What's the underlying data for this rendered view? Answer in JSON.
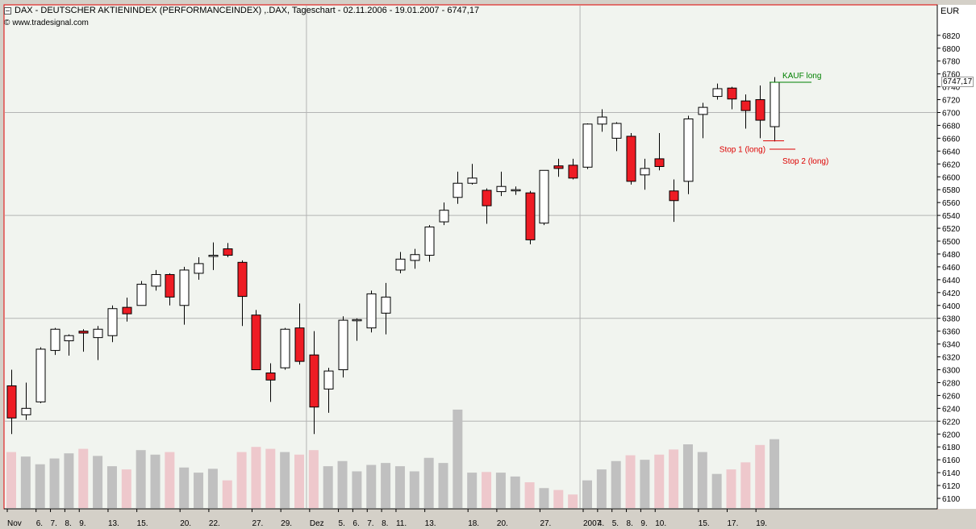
{
  "header": {
    "title": "DAX  - DEUTSCHER AKTIENINDEX (PERFORMANCEINDEX) ,.DAX, Tageschart - 02.11.2006 - 19.01.2007 - 6747,17",
    "source": "www.tradesignal.com",
    "currency": "EUR"
  },
  "last_price_label": "6747,17",
  "icons": {
    "title": "window-icon",
    "source": "copyright-icon"
  },
  "colors": {
    "up_candle": "#ffffff",
    "down_candle": "#ee1c24",
    "volume_up": "#c0c0c0",
    "volume_down": "#eec8cc",
    "signal_buy": "#008000",
    "signal_stop": "#dd0000"
  },
  "chart_data": {
    "type": "candlestick",
    "ylim": [
      6090,
      6840
    ],
    "yticks": [
      6100,
      6120,
      6140,
      6160,
      6180,
      6200,
      6220,
      6240,
      6260,
      6280,
      6300,
      6320,
      6340,
      6360,
      6380,
      6400,
      6420,
      6440,
      6460,
      6480,
      6500,
      6520,
      6540,
      6560,
      6580,
      6600,
      6620,
      6640,
      6660,
      6680,
      6700,
      6720,
      6740,
      6760,
      6780,
      6800,
      6820
    ],
    "x_labels": [
      {
        "i": 0,
        "label": "Nov"
      },
      {
        "i": 2,
        "label": "6."
      },
      {
        "i": 3,
        "label": "7."
      },
      {
        "i": 4,
        "label": "8."
      },
      {
        "i": 5,
        "label": "9."
      },
      {
        "i": 7,
        "label": "13."
      },
      {
        "i": 9,
        "label": "15."
      },
      {
        "i": 12,
        "label": "20."
      },
      {
        "i": 14,
        "label": "22."
      },
      {
        "i": 17,
        "label": "27."
      },
      {
        "i": 19,
        "label": "29."
      },
      {
        "i": 21,
        "label": "Dez"
      },
      {
        "i": 23,
        "label": "5."
      },
      {
        "i": 24,
        "label": "6."
      },
      {
        "i": 25,
        "label": "7."
      },
      {
        "i": 26,
        "label": "8."
      },
      {
        "i": 27,
        "label": "11."
      },
      {
        "i": 29,
        "label": "13."
      },
      {
        "i": 32,
        "label": "18."
      },
      {
        "i": 34,
        "label": "20."
      },
      {
        "i": 37,
        "label": "27."
      },
      {
        "i": 40,
        "label": "2007"
      },
      {
        "i": 41,
        "label": "4."
      },
      {
        "i": 42,
        "label": "5."
      },
      {
        "i": 43,
        "label": "8."
      },
      {
        "i": 44,
        "label": "9."
      },
      {
        "i": 45,
        "label": "10."
      },
      {
        "i": 48,
        "label": "15."
      },
      {
        "i": 50,
        "label": "17."
      },
      {
        "i": 52,
        "label": "19."
      }
    ],
    "vgrid_candles": [
      21,
      40
    ],
    "hgrid_values": [
      6220,
      6380,
      6540,
      6700
    ],
    "candles": [
      {
        "o": 6275,
        "h": 6300,
        "l": 6200,
        "c": 6225,
        "v": 6172
      },
      {
        "o": 6230,
        "h": 6280,
        "l": 6222,
        "c": 6240,
        "v": 6165
      },
      {
        "o": 6250,
        "h": 6335,
        "l": 6248,
        "c": 6332,
        "v": 6153
      },
      {
        "o": 6330,
        "h": 6365,
        "l": 6323,
        "c": 6363,
        "v": 6162
      },
      {
        "o": 6345,
        "h": 6355,
        "l": 6322,
        "c": 6353,
        "v": 6170
      },
      {
        "o": 6360,
        "h": 6363,
        "l": 6328,
        "c": 6357,
        "v": 6177
      },
      {
        "o": 6350,
        "h": 6368,
        "l": 6315,
        "c": 6363,
        "v": 6166
      },
      {
        "o": 6353,
        "h": 6400,
        "l": 6343,
        "c": 6395,
        "v": 6150
      },
      {
        "o": 6397,
        "h": 6412,
        "l": 6375,
        "c": 6387,
        "v": 6145
      },
      {
        "o": 6400,
        "h": 6438,
        "l": 6400,
        "c": 6433,
        "v": 6175
      },
      {
        "o": 6430,
        "h": 6455,
        "l": 6423,
        "c": 6448,
        "v": 6168
      },
      {
        "o": 6448,
        "h": 6450,
        "l": 6400,
        "c": 6413,
        "v": 6172
      },
      {
        "o": 6400,
        "h": 6460,
        "l": 6370,
        "c": 6455,
        "v": 6148
      },
      {
        "o": 6450,
        "h": 6475,
        "l": 6440,
        "c": 6465,
        "v": 6140
      },
      {
        "o": 6478,
        "h": 6498,
        "l": 6455,
        "c": 6478,
        "v": 6146
      },
      {
        "o": 6488,
        "h": 6497,
        "l": 6475,
        "c": 6478,
        "v": 6128
      },
      {
        "o": 6467,
        "h": 6470,
        "l": 6368,
        "c": 6414,
        "v": 6172
      },
      {
        "o": 6385,
        "h": 6393,
        "l": 6300,
        "c": 6300,
        "v": 6180
      },
      {
        "o": 6295,
        "h": 6310,
        "l": 6250,
        "c": 6284,
        "v": 6177
      },
      {
        "o": 6303,
        "h": 6365,
        "l": 6300,
        "c": 6363,
        "v": 6172
      },
      {
        "o": 6365,
        "h": 6403,
        "l": 6308,
        "c": 6313,
        "v": 6168
      },
      {
        "o": 6323,
        "h": 6360,
        "l": 6200,
        "c": 6242,
        "v": 6175
      },
      {
        "o": 6270,
        "h": 6303,
        "l": 6233,
        "c": 6298,
        "v": 6150
      },
      {
        "o": 6300,
        "h": 6383,
        "l": 6288,
        "c": 6377,
        "v": 6158
      },
      {
        "o": 6378,
        "h": 6380,
        "l": 6345,
        "c": 6378,
        "v": 6142
      },
      {
        "o": 6365,
        "h": 6423,
        "l": 6358,
        "c": 6418,
        "v": 6152
      },
      {
        "o": 6388,
        "h": 6435,
        "l": 6355,
        "c": 6413,
        "v": 6155
      },
      {
        "o": 6455,
        "h": 6483,
        "l": 6450,
        "c": 6472,
        "v": 6150
      },
      {
        "o": 6470,
        "h": 6488,
        "l": 6457,
        "c": 6479,
        "v": 6142
      },
      {
        "o": 6478,
        "h": 6525,
        "l": 6468,
        "c": 6522,
        "v": 6163
      },
      {
        "o": 6530,
        "h": 6560,
        "l": 6525,
        "c": 6548,
        "v": 6155
      },
      {
        "o": 6568,
        "h": 6608,
        "l": 6558,
        "c": 6590,
        "v": 6238
      },
      {
        "o": 6590,
        "h": 6620,
        "l": 6588,
        "c": 6598,
        "v": 6140
      },
      {
        "o": 6579,
        "h": 6582,
        "l": 6527,
        "c": 6555,
        "v": 6141
      },
      {
        "o": 6577,
        "h": 6608,
        "l": 6570,
        "c": 6585,
        "v": 6140
      },
      {
        "o": 6580,
        "h": 6585,
        "l": 6572,
        "c": 6580,
        "v": 6134
      },
      {
        "o": 6575,
        "h": 6578,
        "l": 6495,
        "c": 6502,
        "v": 6125
      },
      {
        "o": 6528,
        "h": 6610,
        "l": 6525,
        "c": 6610,
        "v": 6116
      },
      {
        "o": 6617,
        "h": 6628,
        "l": 6600,
        "c": 6613,
        "v": 6113
      },
      {
        "o": 6618,
        "h": 6628,
        "l": 6596,
        "c": 6598,
        "v": 6106
      },
      {
        "o": 6615,
        "h": 6683,
        "l": 6612,
        "c": 6682,
        "v": 6128
      },
      {
        "o": 6682,
        "h": 6705,
        "l": 6670,
        "c": 6693,
        "v": 6145
      },
      {
        "o": 6660,
        "h": 6685,
        "l": 6640,
        "c": 6683,
        "v": 6158
      },
      {
        "o": 6663,
        "h": 6668,
        "l": 6588,
        "c": 6593,
        "v": 6167
      },
      {
        "o": 6603,
        "h": 6628,
        "l": 6580,
        "c": 6613,
        "v": 6160
      },
      {
        "o": 6628,
        "h": 6668,
        "l": 6610,
        "c": 6616,
        "v": 6168
      },
      {
        "o": 6578,
        "h": 6596,
        "l": 6530,
        "c": 6563,
        "v": 6176
      },
      {
        "o": 6593,
        "h": 6695,
        "l": 6573,
        "c": 6690,
        "v": 6184
      },
      {
        "o": 6697,
        "h": 6715,
        "l": 6660,
        "c": 6708,
        "v": 6172
      },
      {
        "o": 6725,
        "h": 6745,
        "l": 6720,
        "c": 6737,
        "v": 6138
      },
      {
        "o": 6738,
        "h": 6740,
        "l": 6705,
        "c": 6721,
        "v": 6145
      },
      {
        "o": 6718,
        "h": 6728,
        "l": 6675,
        "c": 6703,
        "v": 6156
      },
      {
        "o": 6720,
        "h": 6742,
        "l": 6660,
        "c": 6688,
        "v": 6183
      },
      {
        "o": 6678,
        "h": 6755,
        "l": 6655,
        "c": 6747,
        "v": 6192
      }
    ],
    "annotations": [
      {
        "text": "KAUF long",
        "price": 6747,
        "color": "#008000"
      },
      {
        "text": "Stop 1 (long)",
        "price": 6656,
        "color": "#dd0000"
      },
      {
        "text": "Stop 2 (long)",
        "price": 6643,
        "color": "#dd0000"
      }
    ]
  }
}
